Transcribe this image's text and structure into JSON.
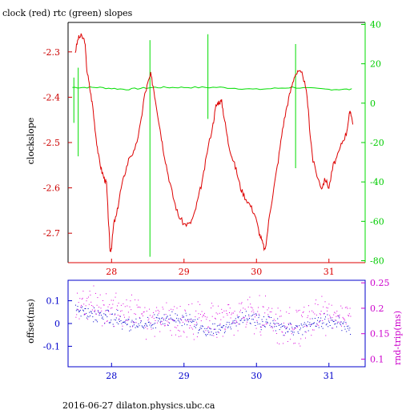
{
  "title": "clock (red) rtc (green) slopes",
  "footer": "2016-06-27 dilaton.physics.ubc.ca",
  "colors": {
    "clock": "#dd0000",
    "rtc": "#00dd00",
    "offset": "#0000cc",
    "roundtrip": "#dd00dd",
    "frame_top_left": "#000000",
    "frame_bottom": "#0000cc",
    "left_ticks_top": "#cc0000",
    "right_ticks_top": "#00cc00",
    "right_ticks_bottom": "#cc00cc"
  },
  "chart_data": [
    {
      "type": "line",
      "grid": false,
      "ylabel": "clockslope",
      "xlim": [
        27.4,
        31.5
      ],
      "ylim": [
        -2.765,
        -2.235
      ],
      "y2lim": [
        -81,
        41
      ],
      "x_ticks": [
        28,
        29,
        30,
        31
      ],
      "y_ticks": [
        -2.3,
        -2.4,
        -2.5,
        -2.6,
        -2.7
      ],
      "y2_ticks": [
        40,
        20,
        0,
        -20,
        -40,
        -60,
        -80
      ],
      "series": [
        {
          "name": "clock",
          "axis": "left",
          "points": [
            [
              27.5,
              -2.3
            ],
            [
              27.54,
              -2.27
            ],
            [
              27.58,
              -2.265
            ],
            [
              27.63,
              -2.275
            ],
            [
              27.66,
              -2.34
            ],
            [
              27.7,
              -2.38
            ],
            [
              27.74,
              -2.42
            ],
            [
              27.78,
              -2.48
            ],
            [
              27.82,
              -2.53
            ],
            [
              27.86,
              -2.56
            ],
            [
              27.9,
              -2.58
            ],
            [
              27.93,
              -2.59
            ],
            [
              27.96,
              -2.68
            ],
            [
              27.98,
              -2.74
            ],
            [
              28.0,
              -2.73
            ],
            [
              28.03,
              -2.68
            ],
            [
              28.07,
              -2.66
            ],
            [
              28.12,
              -2.61
            ],
            [
              28.18,
              -2.57
            ],
            [
              28.25,
              -2.53
            ],
            [
              28.32,
              -2.52
            ],
            [
              28.4,
              -2.46
            ],
            [
              28.45,
              -2.4
            ],
            [
              28.5,
              -2.37
            ],
            [
              28.54,
              -2.35
            ],
            [
              28.58,
              -2.38
            ],
            [
              28.62,
              -2.42
            ],
            [
              28.67,
              -2.47
            ],
            [
              28.72,
              -2.52
            ],
            [
              28.78,
              -2.57
            ],
            [
              28.85,
              -2.62
            ],
            [
              28.92,
              -2.66
            ],
            [
              29.0,
              -2.68
            ],
            [
              29.08,
              -2.68
            ],
            [
              29.14,
              -2.66
            ],
            [
              29.2,
              -2.62
            ],
            [
              29.26,
              -2.58
            ],
            [
              29.32,
              -2.52
            ],
            [
              29.4,
              -2.46
            ],
            [
              29.44,
              -2.42
            ],
            [
              29.48,
              -2.41
            ],
            [
              29.52,
              -2.41
            ],
            [
              29.56,
              -2.45
            ],
            [
              29.61,
              -2.5
            ],
            [
              29.66,
              -2.53
            ],
            [
              29.72,
              -2.56
            ],
            [
              29.78,
              -2.6
            ],
            [
              29.84,
              -2.62
            ],
            [
              29.92,
              -2.64
            ],
            [
              29.98,
              -2.66
            ],
            [
              30.04,
              -2.7
            ],
            [
              30.08,
              -2.72
            ],
            [
              30.12,
              -2.74
            ],
            [
              30.18,
              -2.66
            ],
            [
              30.24,
              -2.6
            ],
            [
              30.3,
              -2.54
            ],
            [
              30.36,
              -2.47
            ],
            [
              30.42,
              -2.42
            ],
            [
              30.48,
              -2.38
            ],
            [
              30.53,
              -2.35
            ],
            [
              30.58,
              -2.345
            ],
            [
              30.64,
              -2.35
            ],
            [
              30.7,
              -2.4
            ],
            [
              30.74,
              -2.48
            ],
            [
              30.78,
              -2.54
            ],
            [
              30.85,
              -2.58
            ],
            [
              30.9,
              -2.6
            ],
            [
              30.95,
              -2.58
            ],
            [
              31.0,
              -2.6
            ],
            [
              31.06,
              -2.55
            ],
            [
              31.12,
              -2.53
            ],
            [
              31.18,
              -2.5
            ],
            [
              31.24,
              -2.48
            ],
            [
              31.28,
              -2.44
            ],
            [
              31.3,
              -2.43
            ],
            [
              31.33,
              -2.46
            ]
          ]
        },
        {
          "name": "rtc",
          "axis": "right",
          "baseline": [
            [
              27.46,
              8
            ],
            [
              27.8,
              8
            ],
            [
              28.2,
              7
            ],
            [
              28.6,
              8
            ],
            [
              29.0,
              8
            ],
            [
              29.5,
              8
            ],
            [
              30.0,
              7
            ],
            [
              30.5,
              8
            ],
            [
              31.0,
              7
            ],
            [
              31.35,
              7
            ]
          ],
          "spikes": [
            [
              27.48,
              -10,
              13
            ],
            [
              27.54,
              -27,
              18
            ],
            [
              28.53,
              -78,
              32
            ],
            [
              29.33,
              -8,
              35
            ],
            [
              30.54,
              -33,
              30
            ]
          ]
        }
      ]
    },
    {
      "type": "scatter",
      "grid": false,
      "ylabel": "offset(ms)",
      "y2label": "rnd-trip(ms)",
      "xlim": [
        27.4,
        31.5
      ],
      "ylim": [
        -0.19,
        0.19
      ],
      "y2lim": [
        0.085,
        0.255
      ],
      "x_ticks": [
        28,
        29,
        30,
        31
      ],
      "y_ticks": [
        0.1,
        0,
        -0.1
      ],
      "y2_ticks": [
        0.25,
        0.2,
        0.15,
        0.1
      ],
      "series": [
        {
          "name": "offset",
          "axis": "left",
          "trend": [
            [
              27.5,
              0.06
            ],
            [
              27.8,
              0.04
            ],
            [
              28.1,
              0.02
            ],
            [
              28.4,
              -0.01
            ],
            [
              28.7,
              0.02
            ],
            [
              29.0,
              0.03
            ],
            [
              29.3,
              -0.03
            ],
            [
              29.6,
              -0.01
            ],
            [
              29.8,
              0.03
            ],
            [
              30.1,
              0.01
            ],
            [
              30.4,
              -0.02
            ],
            [
              30.7,
              -0.01
            ],
            [
              31.0,
              0.02
            ],
            [
              31.3,
              -0.03
            ]
          ],
          "spread": 0.04
        },
        {
          "name": "rnd-trip",
          "axis": "right",
          "trend": [
            [
              27.5,
              0.21
            ],
            [
              28.0,
              0.2
            ],
            [
              28.5,
              0.18
            ],
            [
              29.0,
              0.17
            ],
            [
              29.5,
              0.18
            ],
            [
              30.0,
              0.19
            ],
            [
              30.5,
              0.16
            ],
            [
              31.0,
              0.19
            ],
            [
              31.3,
              0.18
            ]
          ],
          "spread": 0.045
        }
      ]
    }
  ]
}
